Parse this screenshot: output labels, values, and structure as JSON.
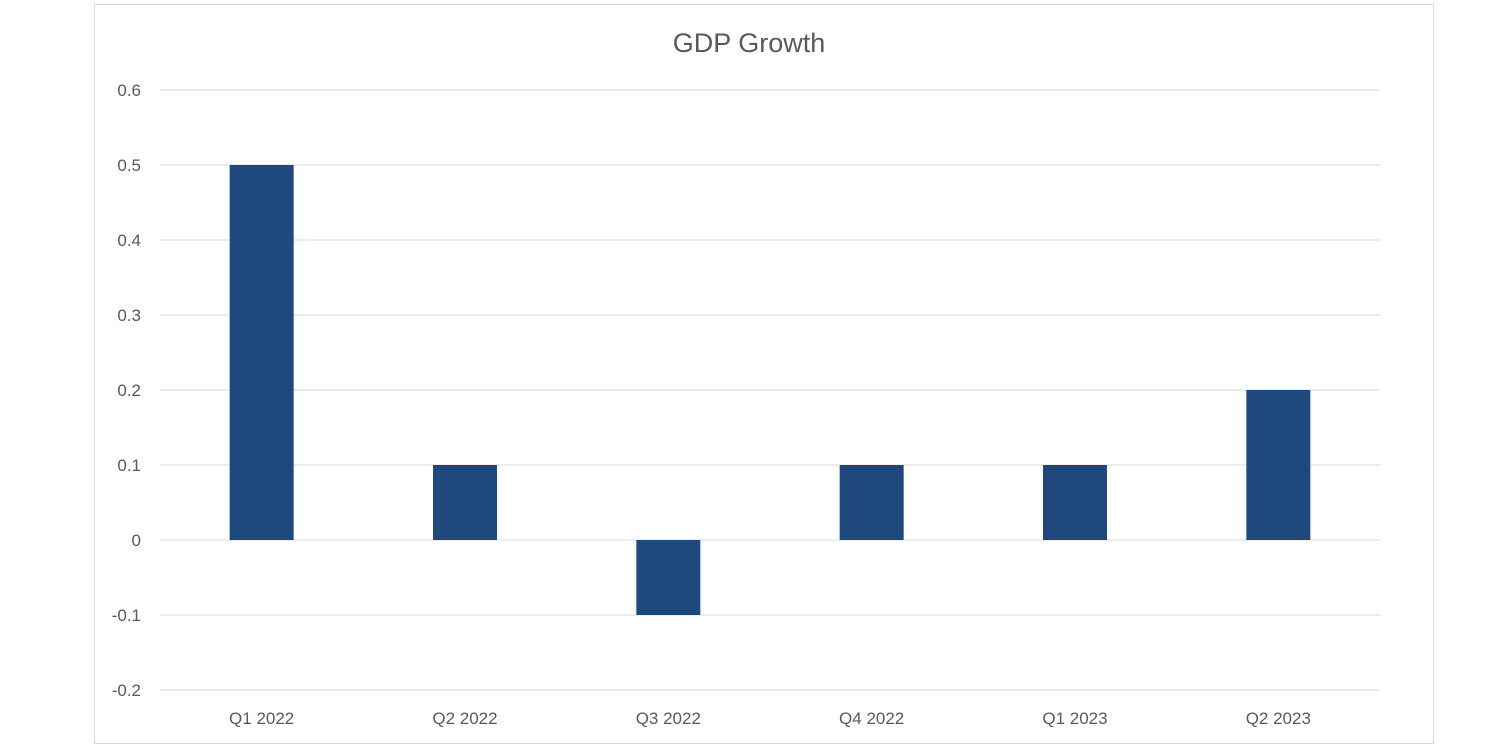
{
  "chart_data": {
    "type": "bar",
    "title": "GDP Growth",
    "categories": [
      "Q1 2022",
      "Q2 2022",
      "Q3 2022",
      "Q4 2022",
      "Q1 2023",
      "Q2 2023"
    ],
    "series": [
      {
        "values": [
          0.5,
          0.1,
          -0.1,
          0.1,
          0.1,
          0.2
        ]
      }
    ],
    "ylim": [
      -0.2,
      0.6
    ],
    "yticks": [
      -0.2,
      -0.1,
      0,
      0.1,
      0.2,
      0.3,
      0.4,
      0.5,
      0.6
    ],
    "ytick_labels": [
      "-0.2",
      "-0.1",
      "0",
      "0.1",
      "0.2",
      "0.3",
      "0.4",
      "0.5",
      "0.6"
    ],
    "xlabel": "",
    "ylabel": "",
    "grid": true,
    "legend": "none",
    "bar_color": "#1f497d"
  }
}
